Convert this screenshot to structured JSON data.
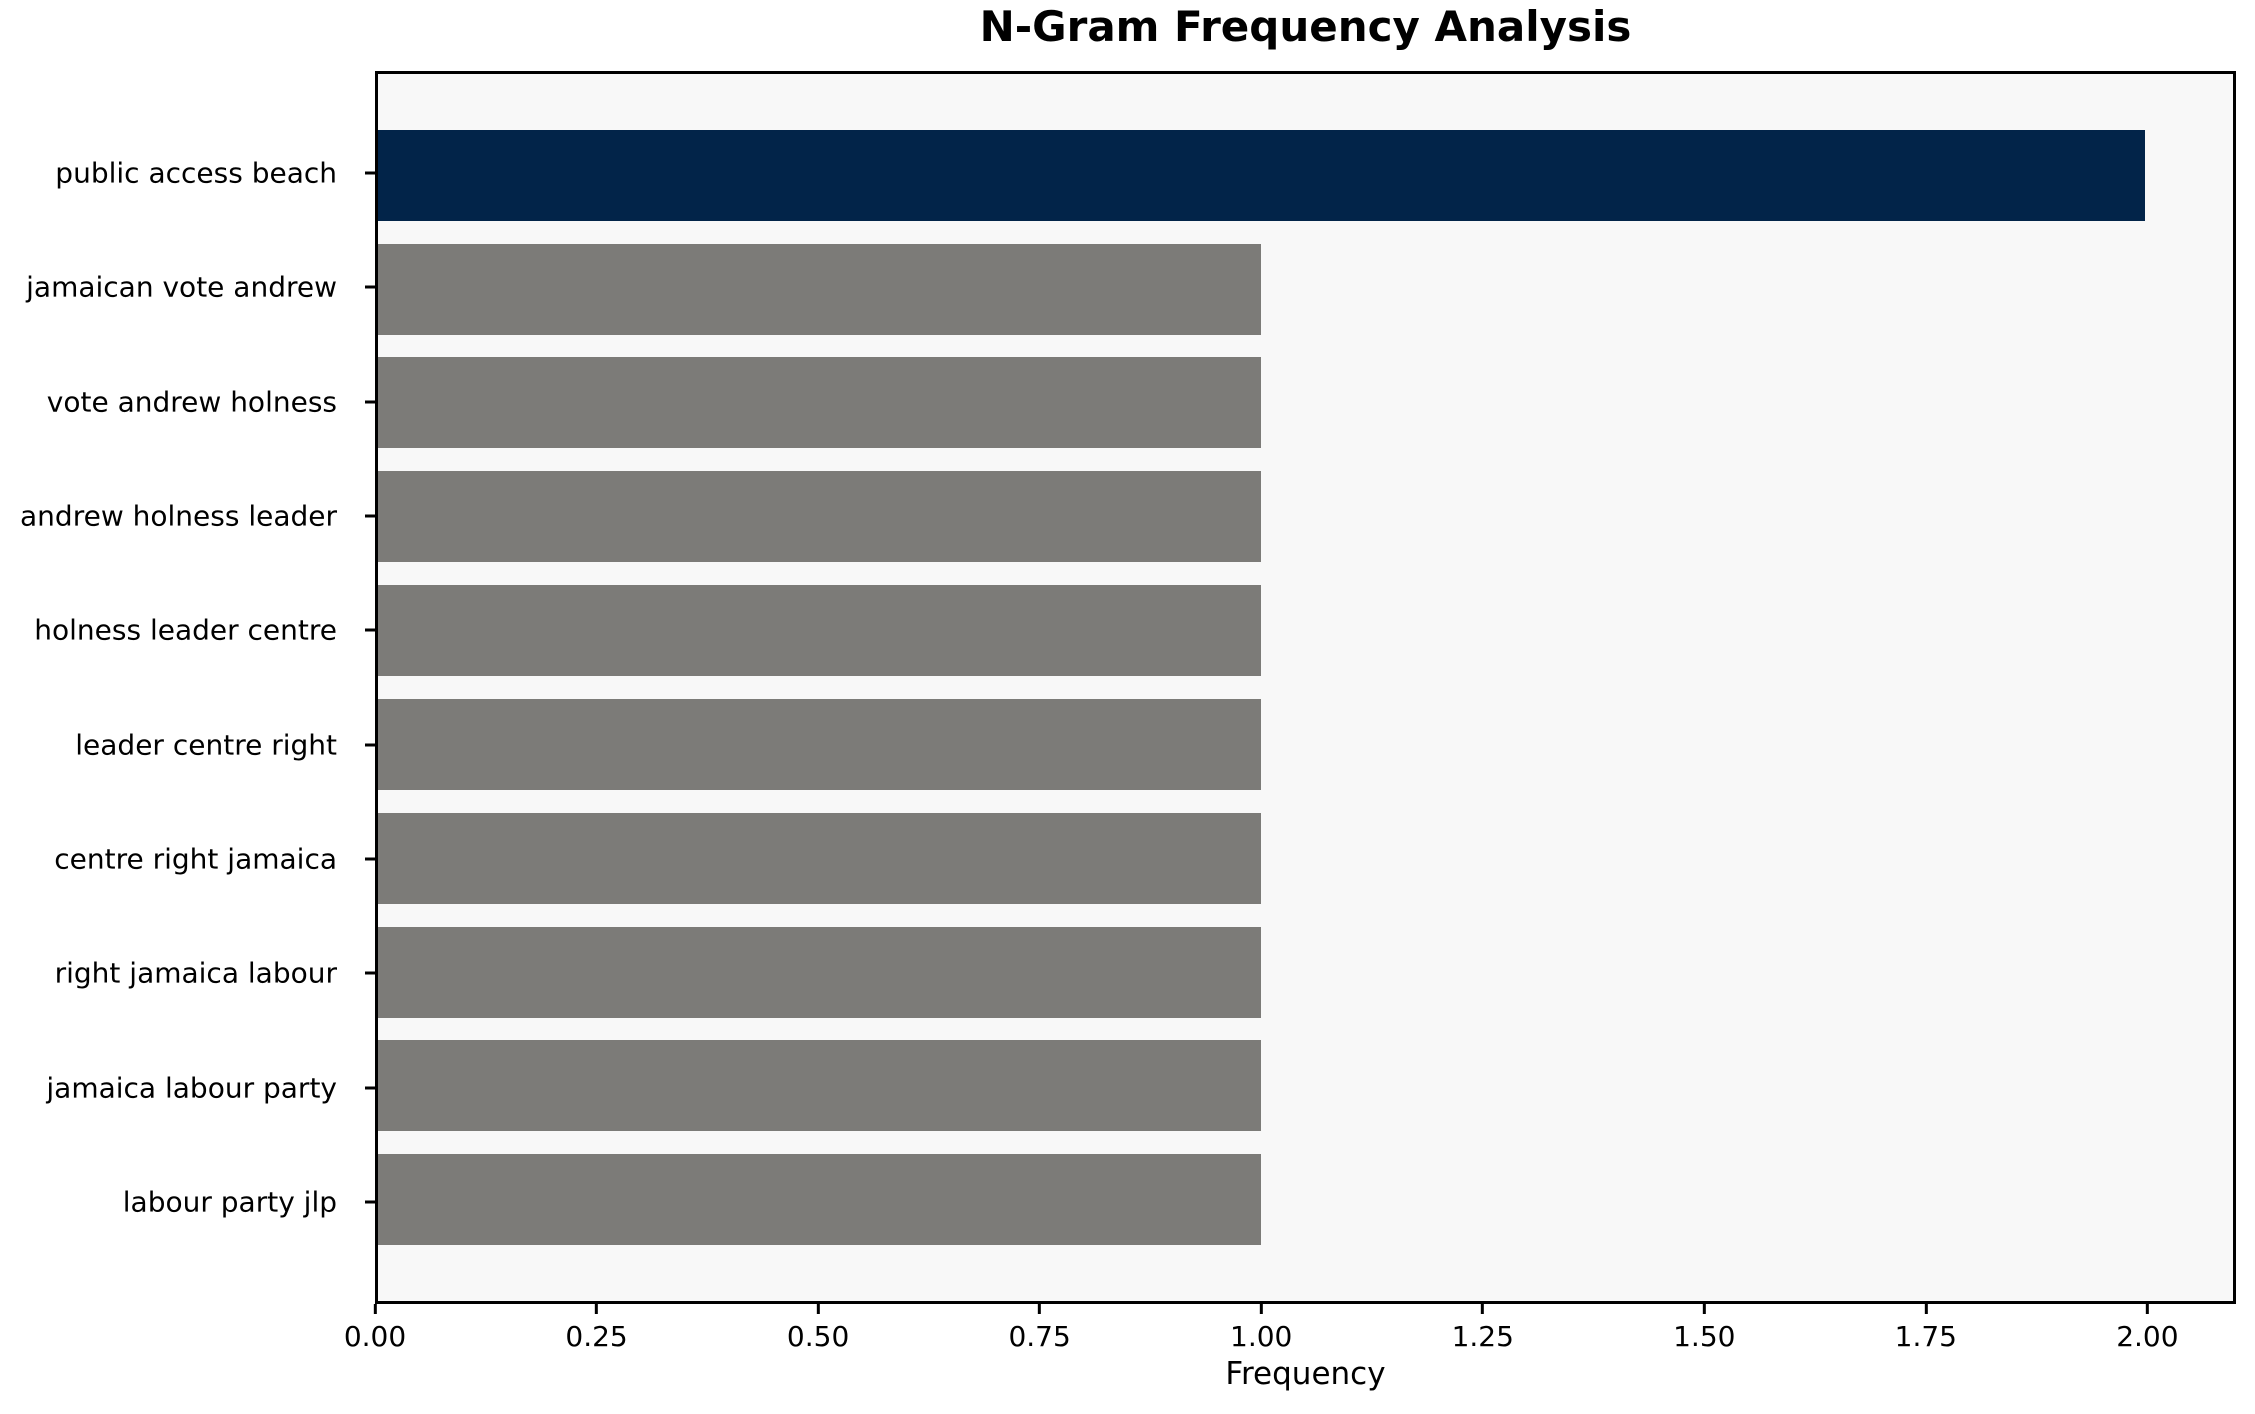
{
  "chart_data": {
    "type": "bar",
    "orientation": "horizontal",
    "title": "N-Gram Frequency Analysis",
    "xlabel": "Frequency",
    "ylabel": "",
    "categories": [
      "public access beach",
      "jamaican vote andrew",
      "vote andrew holness",
      "andrew holness leader",
      "holness leader centre",
      "leader centre right",
      "centre right jamaica",
      "right jamaica labour",
      "jamaica labour party",
      "labour party jlp"
    ],
    "values": [
      2.0,
      1.0,
      1.0,
      1.0,
      1.0,
      1.0,
      1.0,
      1.0,
      1.0,
      1.0
    ],
    "xlim": [
      0,
      2.1
    ],
    "xticks": [
      0.0,
      0.25,
      0.5,
      0.75,
      1.0,
      1.25,
      1.5,
      1.75,
      2.0
    ],
    "xtick_labels": [
      "0.00",
      "0.25",
      "0.50",
      "0.75",
      "1.00",
      "1.25",
      "1.50",
      "1.75",
      "2.00"
    ],
    "highlight_index": 0,
    "colors": {
      "highlight_bar": "#022449",
      "default_bar": "#7c7b78",
      "plot_background": "#f8f8f8",
      "figure_background": "#ffffff",
      "axis": "#000000"
    },
    "bar_thickness_ratio": 0.8,
    "grid": false,
    "legend": null
  }
}
